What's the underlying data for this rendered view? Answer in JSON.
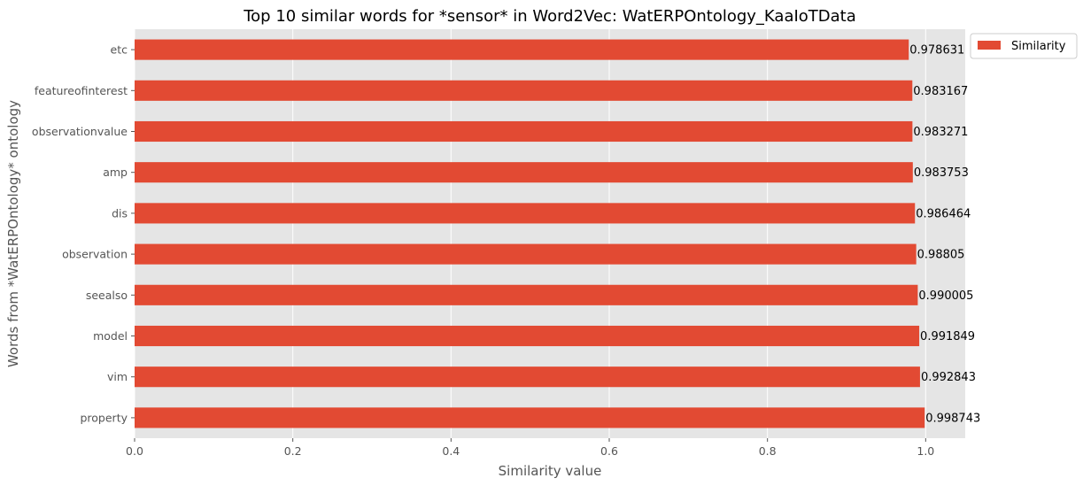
{
  "chart_data": {
    "type": "bar",
    "orientation": "horizontal",
    "title": "Top 10 similar words for *sensor* in Word2Vec: WatERPOntology_KaaIoTData",
    "xlabel": "Similarity value",
    "ylabel": "Words from *WatERPOntology* ontology",
    "categories": [
      "property",
      "vim",
      "model",
      "seealso",
      "observation",
      "dis",
      "amp",
      "observationvalue",
      "featureofinterest",
      "etc"
    ],
    "series": [
      {
        "name": "Similarity",
        "values": [
          0.998743,
          0.992843,
          0.991849,
          0.990005,
          0.98805,
          0.986464,
          0.983753,
          0.983271,
          0.983167,
          0.978631
        ],
        "labels": [
          "0.998743",
          "0.992843",
          "0.991849",
          "0.990005",
          "0.98805",
          "0.986464",
          "0.983753",
          "0.983271",
          "0.983167",
          "0.978631"
        ]
      }
    ],
    "xlim": [
      0.0,
      1.05
    ],
    "xticks": [
      0.0,
      0.2,
      0.4,
      0.6,
      0.8,
      1.0
    ],
    "xtick_labels": [
      "0.0",
      "0.2",
      "0.4",
      "0.6",
      "0.8",
      "1.0"
    ],
    "grid": true,
    "legend_position": "upper-right-outside",
    "colors": {
      "bar": "#E24A33",
      "plot_bg": "#E5E5E5",
      "grid": "#FFFFFF"
    }
  }
}
